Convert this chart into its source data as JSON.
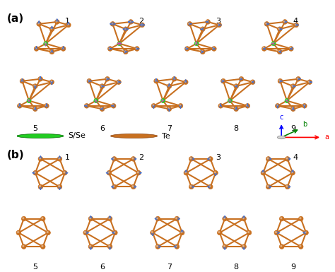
{
  "title_a": "(a)",
  "title_b": "(b)",
  "legend_sse_label": "S/Se",
  "legend_te_label": "Te",
  "legend_sse_color": "#22bb22",
  "legend_te_color": "#c87020",
  "bg_color": "#ffffff",
  "axis_label_c": "c",
  "axis_label_b": "b",
  "axis_label_a": "a",
  "bond_color": "#c87020",
  "arrow_color": "#3a6fd8",
  "pink_arrow_color": "#cc44aa",
  "te_color": "#c87020",
  "sse_color": "#22cc22",
  "n_modes_a": 9,
  "n_modes_b": 9,
  "grid_a_rows": 2,
  "grid_a_cols": [
    4,
    5
  ],
  "grid_b_rows": 2,
  "grid_b_cols": [
    4,
    5
  ],
  "mode_numbers_a_row1": [
    1,
    2,
    3,
    4
  ],
  "mode_numbers_a_row2": [
    5,
    6,
    7,
    8,
    9
  ],
  "mode_numbers_b_row1": [
    1,
    2,
    3,
    4
  ],
  "mode_numbers_b_row2": [
    5,
    6,
    7,
    8,
    9
  ],
  "font_size_labels": 10,
  "font_size_mode_nums": 8,
  "font_size_legend": 8,
  "font_size_axis": 7
}
